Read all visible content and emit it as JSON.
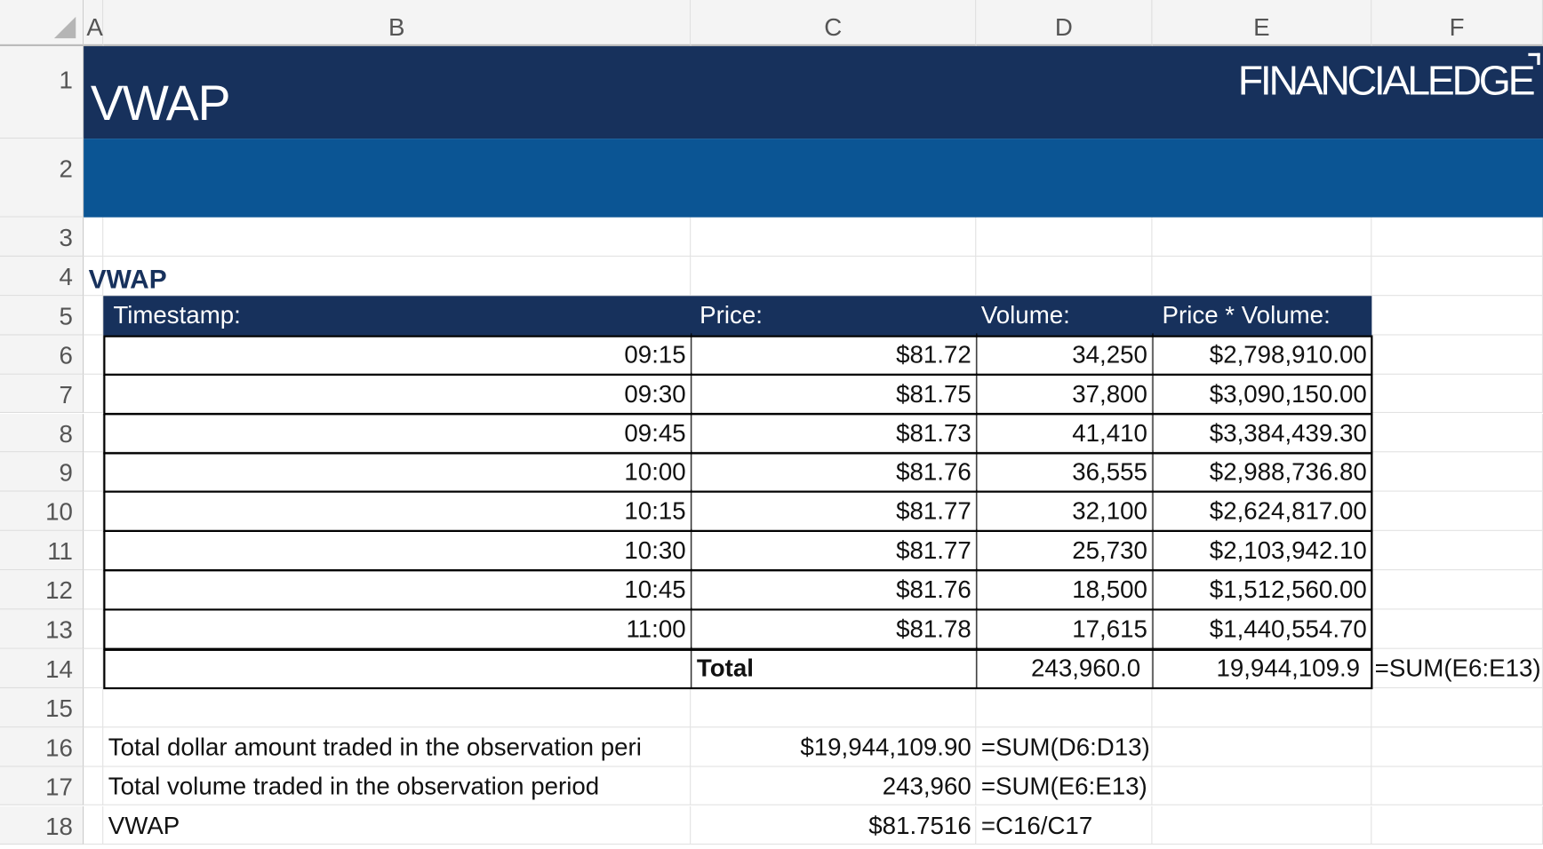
{
  "columns": [
    "A",
    "B",
    "C",
    "D",
    "E",
    "F"
  ],
  "rows": [
    "1",
    "2",
    "3",
    "4",
    "5",
    "6",
    "7",
    "8",
    "9",
    "10",
    "11",
    "12",
    "13",
    "14",
    "15",
    "16",
    "17",
    "18"
  ],
  "banner": {
    "title": "VWAP",
    "logo": "FINANCIALEDGE",
    "colors": {
      "dark": "#17315c",
      "mid": "#0b5594"
    }
  },
  "section_title": "VWAP",
  "table": {
    "headers": [
      "Timestamp:",
      "Price:",
      "Volume:",
      "Price * Volume:"
    ],
    "rows": [
      [
        "09:15",
        "$81.72",
        "34,250",
        "$2,798,910.00"
      ],
      [
        "09:30",
        "$81.75",
        "37,800",
        "$3,090,150.00"
      ],
      [
        "09:45",
        "$81.73",
        "41,410",
        "$3,384,439.30"
      ],
      [
        "10:00",
        "$81.76",
        "36,555",
        "$2,988,736.80"
      ],
      [
        "10:15",
        "$81.77",
        "32,100",
        "$2,624,817.00"
      ],
      [
        "10:30",
        "$81.77",
        "25,730",
        "$2,103,942.10"
      ],
      [
        "10:45",
        "$81.76",
        "18,500",
        "$1,512,560.00"
      ],
      [
        "11:00",
        "$81.78",
        "17,615",
        "$1,440,554.70"
      ]
    ],
    "total": {
      "label": "Total",
      "volume": "243,960.0",
      "pv": "19,944,109.9",
      "formula": "=SUM(E6:E13)"
    }
  },
  "summary": [
    {
      "label": "Total dollar amount traded in the observation peri",
      "value": "$19,944,109.90",
      "formula": "=SUM(D6:D13)"
    },
    {
      "label": "Total volume traded in the observation period",
      "value": "243,960",
      "formula": "=SUM(E6:E13)"
    },
    {
      "label": "VWAP",
      "value": "$81.7516",
      "formula": "=C16/C17"
    }
  ]
}
